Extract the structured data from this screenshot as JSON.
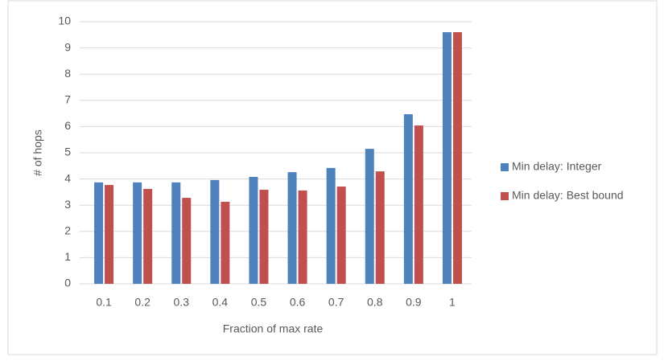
{
  "chart_data": {
    "type": "bar",
    "x_label": "Fraction of max rate",
    "y_label": "# of hops",
    "categories": [
      "0.1",
      "0.2",
      "0.3",
      "0.4",
      "0.5",
      "0.6",
      "0.7",
      "0.8",
      "0.9",
      "1"
    ],
    "series": [
      {
        "name": "Min delay: Integer",
        "color": "#4f81bd",
        "values": [
          3.87,
          3.87,
          3.87,
          3.96,
          4.08,
          4.26,
          4.42,
          5.15,
          6.47,
          9.6
        ]
      },
      {
        "name": "Min delay: Best bound",
        "color": "#c0504d",
        "values": [
          3.77,
          3.62,
          3.28,
          3.13,
          3.59,
          3.56,
          3.71,
          4.29,
          6.04,
          9.6
        ]
      }
    ],
    "ylim": [
      0,
      10
    ],
    "yticks": [
      0,
      1,
      2,
      3,
      4,
      5,
      6,
      7,
      8,
      9,
      10
    ],
    "grid": true,
    "legend": "right"
  }
}
